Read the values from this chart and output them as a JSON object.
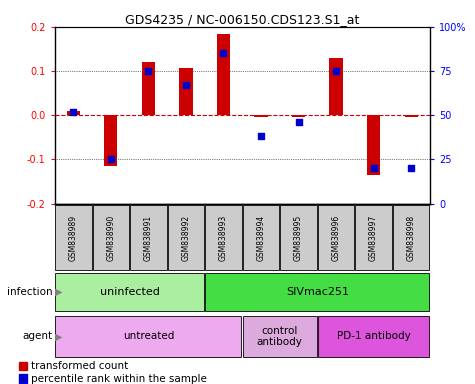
{
  "title": "GDS4235 / NC-006150.CDS123.S1_at",
  "samples": [
    "GSM838989",
    "GSM838990",
    "GSM838991",
    "GSM838992",
    "GSM838993",
    "GSM838994",
    "GSM838995",
    "GSM838996",
    "GSM838997",
    "GSM838998"
  ],
  "transformed_count": [
    0.01,
    -0.115,
    0.12,
    0.107,
    0.185,
    -0.005,
    -0.005,
    0.13,
    -0.135,
    -0.005
  ],
  "percentile_rank": [
    52,
    25,
    75,
    67,
    85,
    38,
    46,
    75,
    20,
    20
  ],
  "ylim": [
    -0.2,
    0.2
  ],
  "yticks_left": [
    -0.2,
    -0.1,
    0.0,
    0.1,
    0.2
  ],
  "yticks_right": [
    0,
    25,
    50,
    75,
    100
  ],
  "bar_color": "#cc0000",
  "dot_color": "#0000cc",
  "infection_groups": [
    {
      "label": "uninfected",
      "start": 0,
      "end": 4,
      "color": "#aaeea a"
    },
    {
      "label": "SIVmac251",
      "start": 4,
      "end": 10,
      "color": "#44dd44"
    }
  ],
  "agent_groups": [
    {
      "label": "untreated",
      "start": 0,
      "end": 5,
      "color": "#eeaaee"
    },
    {
      "label": "control\nantibody",
      "start": 5,
      "end": 7,
      "color": "#ddaadd"
    },
    {
      "label": "PD-1 antibody",
      "start": 7,
      "end": 10,
      "color": "#dd55dd"
    }
  ],
  "sample_box_color": "#cccccc",
  "zero_line_color": "#cc0000",
  "fig_width": 4.75,
  "fig_height": 3.84,
  "dpi": 100
}
